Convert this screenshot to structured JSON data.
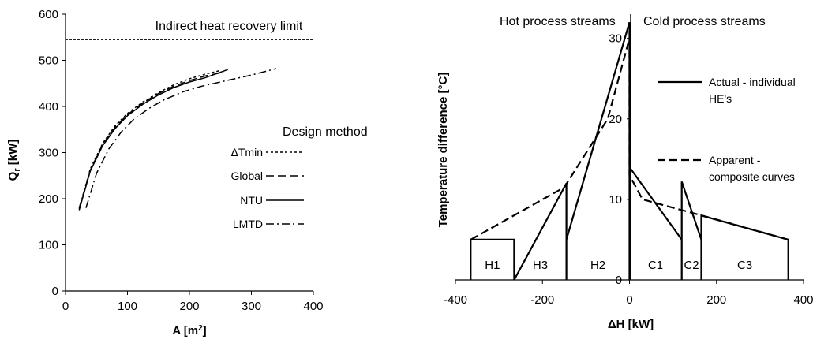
{
  "chart_data": [
    {
      "type": "line",
      "title": "",
      "xlabel": "A [m²]",
      "ylabel": "Qr [kW]",
      "ylabel_main": "Q",
      "ylabel_sub": "r",
      "ylabel_unit": " [kW]",
      "xlim": [
        0,
        400
      ],
      "ylim": [
        0,
        600
      ],
      "xticks": [
        "0",
        "100",
        "200",
        "300",
        "400"
      ],
      "yticks": [
        "0",
        "100",
        "200",
        "300",
        "400",
        "500",
        "600"
      ],
      "grid": false,
      "annotation": {
        "text": "Indirect heat recovery limit",
        "y": 545
      },
      "legend_title": "Design method",
      "legend_position": "right",
      "series": [
        {
          "name": "ΔTmin",
          "dash": "dotted",
          "x": [
            22,
            40,
            60,
            80,
            100,
            125,
            150,
            175,
            200,
            225,
            250
          ],
          "y": [
            178,
            265,
            320,
            358,
            385,
            410,
            430,
            447,
            460,
            470,
            478
          ]
        },
        {
          "name": "Global",
          "dash": "dashed",
          "x": [
            22,
            40,
            60,
            80,
            100,
            125,
            150,
            175,
            200,
            225,
            255
          ],
          "y": [
            180,
            262,
            318,
            355,
            382,
            408,
            428,
            444,
            456,
            466,
            474
          ]
        },
        {
          "name": "NTU",
          "dash": "solid",
          "x": [
            22,
            40,
            60,
            80,
            100,
            125,
            150,
            175,
            200,
            225,
            262
          ],
          "y": [
            175,
            260,
            315,
            352,
            380,
            405,
            425,
            441,
            453,
            462,
            480
          ]
        },
        {
          "name": "LMTD",
          "dash": "dashdot",
          "x": [
            33,
            50,
            70,
            90,
            110,
            135,
            160,
            190,
            220,
            260,
            300,
            340
          ],
          "y": [
            180,
            255,
            308,
            345,
            372,
            396,
            415,
            432,
            444,
            456,
            468,
            482
          ]
        }
      ]
    },
    {
      "type": "line",
      "title": "",
      "xlabel": "ΔH [kW]",
      "ylabel": "Temperature difference [°C]",
      "xlim": [
        -400,
        400
      ],
      "ylim": [
        0,
        33
      ],
      "xticks": [
        "-400",
        "-200",
        "0",
        "200",
        "400"
      ],
      "yticks": [
        "0",
        "10",
        "20",
        "30"
      ],
      "grid": false,
      "region_labels": {
        "left": "Hot process streams",
        "right": "Cold process streams"
      },
      "segments": [
        {
          "label": "H1",
          "x": [
            -365,
            -265
          ]
        },
        {
          "label": "H3",
          "x": [
            -265,
            -145
          ]
        },
        {
          "label": "H2",
          "x": [
            -145,
            0
          ]
        },
        {
          "label": "C1",
          "x": [
            0,
            120
          ]
        },
        {
          "label": "C2",
          "x": [
            120,
            165
          ]
        },
        {
          "label": "C3",
          "x": [
            165,
            365
          ]
        }
      ],
      "series": [
        {
          "name": "Actual - individual HE's",
          "legend_lines": [
            "Actual - individual",
            "HE's"
          ],
          "dash": "solid",
          "x": [
            -365,
            -365,
            -265,
            -265,
            -145,
            -145,
            -145,
            0,
            0,
            0,
            120,
            120,
            120,
            165,
            165,
            165,
            365,
            365
          ],
          "y": [
            0,
            5,
            5,
            0,
            12,
            0,
            5,
            32,
            0,
            14,
            5,
            0,
            12.2,
            5,
            0,
            8,
            5,
            0
          ]
        },
        {
          "name": "Apparent - composite curves",
          "legend_lines": [
            "Apparent -",
            "composite curves"
          ],
          "dash": "dashed",
          "x": [
            -365,
            -150,
            -50,
            0,
            0,
            30,
            200,
            365
          ],
          "y": [
            5,
            11.5,
            20,
            30,
            13,
            10,
            7.5,
            5
          ]
        }
      ]
    }
  ]
}
